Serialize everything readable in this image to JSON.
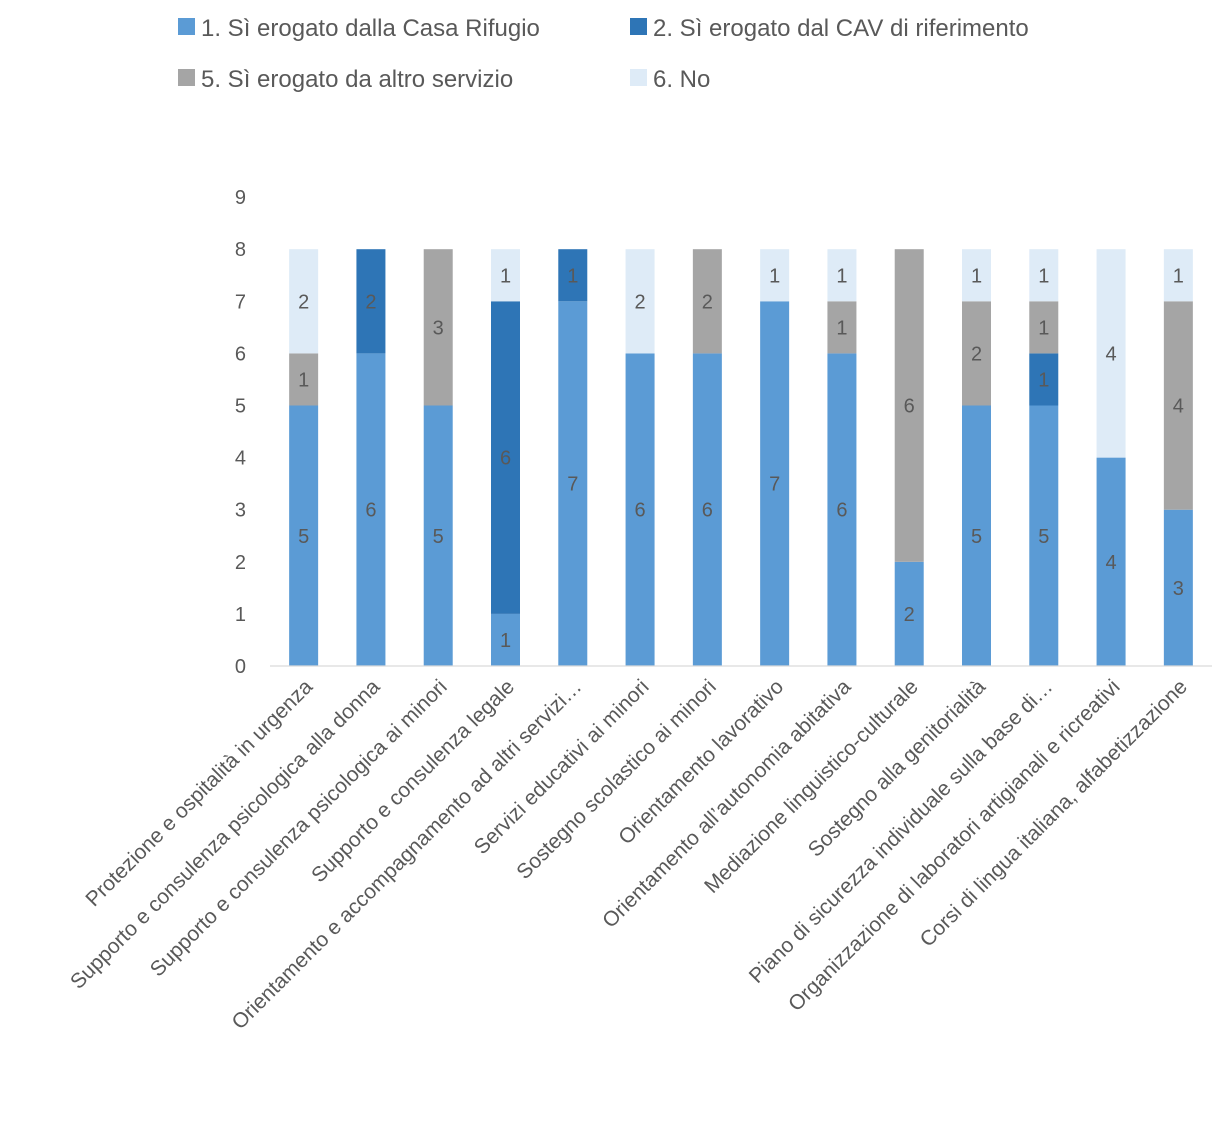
{
  "chart_data": {
    "type": "bar",
    "stacked": true,
    "categories": [
      "Protezione e ospitalità in urgenza",
      "Supporto e consulenza psicologica alla donna",
      "Supporto e consulenza psicologica ai minori",
      "Supporto e consulenza legale",
      "Orientamento e accompagnamento ad altri servizi…",
      "Servizi educativi ai minori",
      "Sostegno scolastico ai minori",
      "Orientamento lavorativo",
      "Orientamento all’autonomia abitativa",
      "Mediazione linguistico-culturale",
      "Sostegno alla genitorialità",
      "Piano di sicurezza individuale sulla base di…",
      "Organizzazione di laboratori artigianali e ricreativi",
      "Corsi di lingua italiana, alfabetizzazione"
    ],
    "series": [
      {
        "name": "1. Sì erogato dalla Casa Rifugio",
        "color": "#5b9bd5",
        "values": [
          5,
          6,
          5,
          1,
          7,
          6,
          6,
          7,
          6,
          2,
          5,
          5,
          4,
          3
        ]
      },
      {
        "name": "2. Sì erogato dal CAV di riferimento",
        "color": "#2e75b6",
        "values": [
          0,
          2,
          0,
          6,
          1,
          0,
          0,
          0,
          0,
          0,
          0,
          1,
          0,
          0
        ]
      },
      {
        "name": "5. Sì erogato da altro servizio",
        "color": "#a5a5a5",
        "values": [
          1,
          0,
          3,
          0,
          0,
          0,
          2,
          0,
          1,
          6,
          2,
          1,
          0,
          4
        ]
      },
      {
        "name": "6. No",
        "color": "#deebf7",
        "values": [
          2,
          0,
          0,
          1,
          0,
          2,
          0,
          1,
          1,
          0,
          1,
          1,
          4,
          1
        ]
      }
    ],
    "y_ticks": [
      "0",
      "1",
      "2",
      "3",
      "4",
      "5",
      "6",
      "7",
      "8",
      "9"
    ],
    "ylim": [
      0,
      9
    ],
    "grid": false,
    "legend_position": "top"
  }
}
